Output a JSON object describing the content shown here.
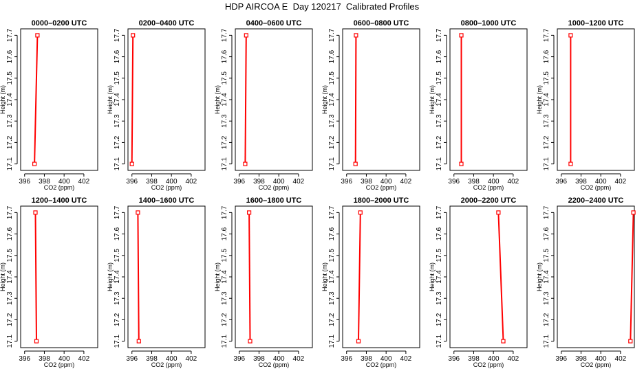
{
  "page": {
    "title": "HDP AIRCOA E  Day 120217  Calibrated Profiles"
  },
  "colors": {
    "series": "#ff0000",
    "axis": "#000000"
  },
  "chart_data": [
    {
      "type": "line",
      "title": "0000–0200 UTC",
      "xlabel": "CO2 (ppm)",
      "ylabel": "Height (m)",
      "xlim": [
        395.6,
        403.4
      ],
      "ylim": [
        17.07,
        17.73
      ],
      "xticks": [
        396,
        398,
        400,
        402
      ],
      "yticks": [
        17.1,
        17.2,
        17.3,
        17.4,
        17.5,
        17.6,
        17.7
      ],
      "x": [
        397.0,
        397.3
      ],
      "y": [
        17.1,
        17.7
      ]
    },
    {
      "type": "line",
      "title": "0200–0400 UTC",
      "xlabel": "CO2 (ppm)",
      "ylabel": "Height (m)",
      "xlim": [
        395.6,
        403.4
      ],
      "ylim": [
        17.07,
        17.73
      ],
      "xticks": [
        396,
        398,
        400,
        402
      ],
      "yticks": [
        17.1,
        17.2,
        17.3,
        17.4,
        17.5,
        17.6,
        17.7
      ],
      "x": [
        396.0,
        396.1
      ],
      "y": [
        17.1,
        17.7
      ]
    },
    {
      "type": "line",
      "title": "0400–0600 UTC",
      "xlabel": "CO2 (ppm)",
      "ylabel": "Height (m)",
      "xlim": [
        395.6,
        403.4
      ],
      "ylim": [
        17.07,
        17.73
      ],
      "xticks": [
        396,
        398,
        400,
        402
      ],
      "yticks": [
        17.1,
        17.2,
        17.3,
        17.4,
        17.5,
        17.6,
        17.7
      ],
      "x": [
        396.6,
        396.7
      ],
      "y": [
        17.1,
        17.7
      ]
    },
    {
      "type": "line",
      "title": "0600–0800 UTC",
      "xlabel": "CO2 (ppm)",
      "ylabel": "Height (m)",
      "xlim": [
        395.6,
        403.4
      ],
      "ylim": [
        17.07,
        17.73
      ],
      "xticks": [
        396,
        398,
        400,
        402
      ],
      "yticks": [
        17.1,
        17.2,
        17.3,
        17.4,
        17.5,
        17.6,
        17.7
      ],
      "x": [
        396.9,
        396.95
      ],
      "y": [
        17.1,
        17.7
      ]
    },
    {
      "type": "line",
      "title": "0800–1000 UTC",
      "xlabel": "CO2 (ppm)",
      "ylabel": "Height (m)",
      "xlim": [
        395.6,
        403.4
      ],
      "ylim": [
        17.07,
        17.73
      ],
      "xticks": [
        396,
        398,
        400,
        402
      ],
      "yticks": [
        17.1,
        17.2,
        17.3,
        17.4,
        17.5,
        17.6,
        17.7
      ],
      "x": [
        396.75,
        396.75
      ],
      "y": [
        17.1,
        17.7
      ]
    },
    {
      "type": "line",
      "title": "1000–1200 UTC",
      "xlabel": "CO2 (ppm)",
      "ylabel": "Height (m)",
      "xlim": [
        395.6,
        403.4
      ],
      "ylim": [
        17.07,
        17.73
      ],
      "xticks": [
        396,
        398,
        400,
        402
      ],
      "yticks": [
        17.1,
        17.2,
        17.3,
        17.4,
        17.5,
        17.6,
        17.7
      ],
      "x": [
        396.95,
        396.95
      ],
      "y": [
        17.1,
        17.7
      ]
    },
    {
      "type": "line",
      "title": "1200–1400 UTC",
      "xlabel": "CO2 (ppm)",
      "ylabel": "Height (m)",
      "xlim": [
        395.6,
        403.4
      ],
      "ylim": [
        17.07,
        17.73
      ],
      "xticks": [
        396,
        398,
        400,
        402
      ],
      "yticks": [
        17.1,
        17.2,
        17.3,
        17.4,
        17.5,
        17.6,
        17.7
      ],
      "x": [
        397.2,
        397.1
      ],
      "y": [
        17.1,
        17.7
      ]
    },
    {
      "type": "line",
      "title": "1400–1600 UTC",
      "xlabel": "CO2 (ppm)",
      "ylabel": "Height (m)",
      "xlim": [
        395.6,
        403.4
      ],
      "ylim": [
        17.07,
        17.73
      ],
      "xticks": [
        396,
        398,
        400,
        402
      ],
      "yticks": [
        17.1,
        17.2,
        17.3,
        17.4,
        17.5,
        17.6,
        17.7
      ],
      "x": [
        396.7,
        396.6
      ],
      "y": [
        17.1,
        17.7
      ]
    },
    {
      "type": "line",
      "title": "1600–1800 UTC",
      "xlabel": "CO2 (ppm)",
      "ylabel": "Height (m)",
      "xlim": [
        395.6,
        403.4
      ],
      "ylim": [
        17.07,
        17.73
      ],
      "xticks": [
        396,
        398,
        400,
        402
      ],
      "yticks": [
        17.1,
        17.2,
        17.3,
        17.4,
        17.5,
        17.6,
        17.7
      ],
      "x": [
        397.1,
        397.0
      ],
      "y": [
        17.1,
        17.7
      ]
    },
    {
      "type": "line",
      "title": "1800–2000 UTC",
      "xlabel": "CO2 (ppm)",
      "ylabel": "Height (m)",
      "xlim": [
        395.6,
        403.4
      ],
      "ylim": [
        17.07,
        17.73
      ],
      "xticks": [
        396,
        398,
        400,
        402
      ],
      "yticks": [
        17.1,
        17.2,
        17.3,
        17.4,
        17.5,
        17.6,
        17.7
      ],
      "x": [
        397.2,
        397.4
      ],
      "y": [
        17.1,
        17.7
      ]
    },
    {
      "type": "line",
      "title": "2000–2200 UTC",
      "xlabel": "CO2 (ppm)",
      "ylabel": "Height (m)",
      "xlim": [
        395.6,
        403.4
      ],
      "ylim": [
        17.07,
        17.73
      ],
      "xticks": [
        396,
        398,
        400,
        402
      ],
      "yticks": [
        17.1,
        17.2,
        17.3,
        17.4,
        17.5,
        17.6,
        17.7
      ],
      "x": [
        401.0,
        400.5
      ],
      "y": [
        17.1,
        17.7
      ]
    },
    {
      "type": "line",
      "title": "2200–2400 UTC",
      "xlabel": "CO2 (ppm)",
      "ylabel": "Height (m)",
      "xlim": [
        395.6,
        403.4
      ],
      "ylim": [
        17.07,
        17.73
      ],
      "xticks": [
        396,
        398,
        400,
        402
      ],
      "yticks": [
        17.1,
        17.2,
        17.3,
        17.4,
        17.5,
        17.6,
        17.7
      ],
      "x": [
        403.0,
        403.3
      ],
      "y": [
        17.1,
        17.7
      ]
    }
  ]
}
